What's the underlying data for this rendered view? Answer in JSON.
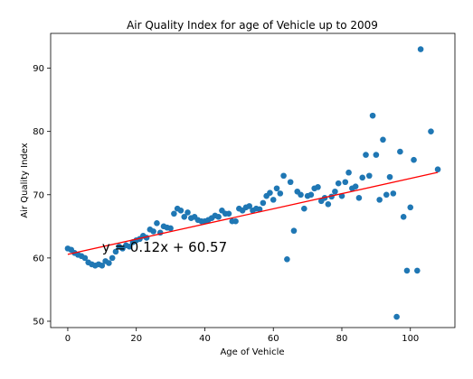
{
  "chart_data": {
    "type": "scatter",
    "title": "Air Quality Index for age of Vehicle up to 2009",
    "xlabel": "Age of Vehicle",
    "ylabel": "Air Quality Index",
    "xlim": [
      -5,
      113
    ],
    "ylim": [
      49,
      95.5
    ],
    "xticks": [
      0,
      20,
      40,
      60,
      80,
      100
    ],
    "yticks": [
      50,
      60,
      70,
      80,
      90
    ],
    "grid": false,
    "point_color": "#1f77b4",
    "line_color": "#ff0000",
    "points": [
      [
        0,
        61.5
      ],
      [
        1,
        61.3
      ],
      [
        2,
        60.8
      ],
      [
        3,
        60.5
      ],
      [
        4,
        60.3
      ],
      [
        5,
        60.0
      ],
      [
        6,
        59.3
      ],
      [
        7,
        59.0
      ],
      [
        8,
        58.8
      ],
      [
        9,
        59.0
      ],
      [
        10,
        58.8
      ],
      [
        11,
        59.5
      ],
      [
        12,
        59.2
      ],
      [
        13,
        60.0
      ],
      [
        14,
        61.0
      ],
      [
        15,
        61.8
      ],
      [
        16,
        61.5
      ],
      [
        17,
        62.0
      ],
      [
        18,
        61.8
      ],
      [
        19,
        62.5
      ],
      [
        20,
        62.8
      ],
      [
        21,
        63.0
      ],
      [
        22,
        63.5
      ],
      [
        23,
        63.2
      ],
      [
        24,
        64.5
      ],
      [
        25,
        64.2
      ],
      [
        26,
        65.5
      ],
      [
        27,
        64.0
      ],
      [
        28,
        65.0
      ],
      [
        29,
        64.8
      ],
      [
        30,
        64.7
      ],
      [
        31,
        67.0
      ],
      [
        32,
        67.8
      ],
      [
        33,
        67.5
      ],
      [
        34,
        66.5
      ],
      [
        35,
        67.2
      ],
      [
        36,
        66.3
      ],
      [
        37,
        66.5
      ],
      [
        38,
        66.0
      ],
      [
        39,
        65.8
      ],
      [
        40,
        65.8
      ],
      [
        41,
        66.0
      ],
      [
        42,
        66.3
      ],
      [
        43,
        66.7
      ],
      [
        44,
        66.5
      ],
      [
        45,
        67.5
      ],
      [
        46,
        67.0
      ],
      [
        47,
        67.0
      ],
      [
        48,
        65.8
      ],
      [
        49,
        65.8
      ],
      [
        50,
        67.8
      ],
      [
        51,
        67.5
      ],
      [
        52,
        68.0
      ],
      [
        53,
        68.2
      ],
      [
        54,
        67.5
      ],
      [
        55,
        67.8
      ],
      [
        56,
        67.7
      ],
      [
        57,
        68.7
      ],
      [
        58,
        69.8
      ],
      [
        59,
        70.3
      ],
      [
        60,
        69.2
      ],
      [
        61,
        71.0
      ],
      [
        62,
        70.2
      ],
      [
        63,
        73.0
      ],
      [
        64,
        59.8
      ],
      [
        65,
        72.0
      ],
      [
        66,
        64.3
      ],
      [
        67,
        70.5
      ],
      [
        68,
        70.0
      ],
      [
        69,
        67.8
      ],
      [
        70,
        69.8
      ],
      [
        71,
        70.0
      ],
      [
        72,
        71.0
      ],
      [
        73,
        71.2
      ],
      [
        74,
        69.0
      ],
      [
        75,
        69.5
      ],
      [
        76,
        68.5
      ],
      [
        77,
        69.7
      ],
      [
        78,
        70.5
      ],
      [
        79,
        71.8
      ],
      [
        80,
        69.8
      ],
      [
        81,
        72.0
      ],
      [
        82,
        73.5
      ],
      [
        83,
        71.0
      ],
      [
        84,
        71.3
      ],
      [
        85,
        69.5
      ],
      [
        86,
        72.7
      ],
      [
        87,
        76.3
      ],
      [
        88,
        73.0
      ],
      [
        89,
        82.5
      ],
      [
        90,
        76.3
      ],
      [
        91,
        69.2
      ],
      [
        92,
        78.7
      ],
      [
        93,
        70.0
      ],
      [
        94,
        72.8
      ],
      [
        95,
        70.2
      ],
      [
        96,
        50.7
      ],
      [
        97,
        76.8
      ],
      [
        98,
        66.5
      ],
      [
        99,
        58.0
      ],
      [
        100,
        68.0
      ],
      [
        101,
        75.5
      ],
      [
        102,
        58.0
      ],
      [
        103,
        93.0
      ],
      [
        106,
        80.0
      ],
      [
        108,
        74.0
      ]
    ],
    "regression": {
      "slope": 0.12,
      "intercept": 60.57,
      "x_range": [
        0,
        108
      ],
      "label": "y = 0.12x + 60.57",
      "label_position": [
        10,
        61
      ]
    }
  }
}
